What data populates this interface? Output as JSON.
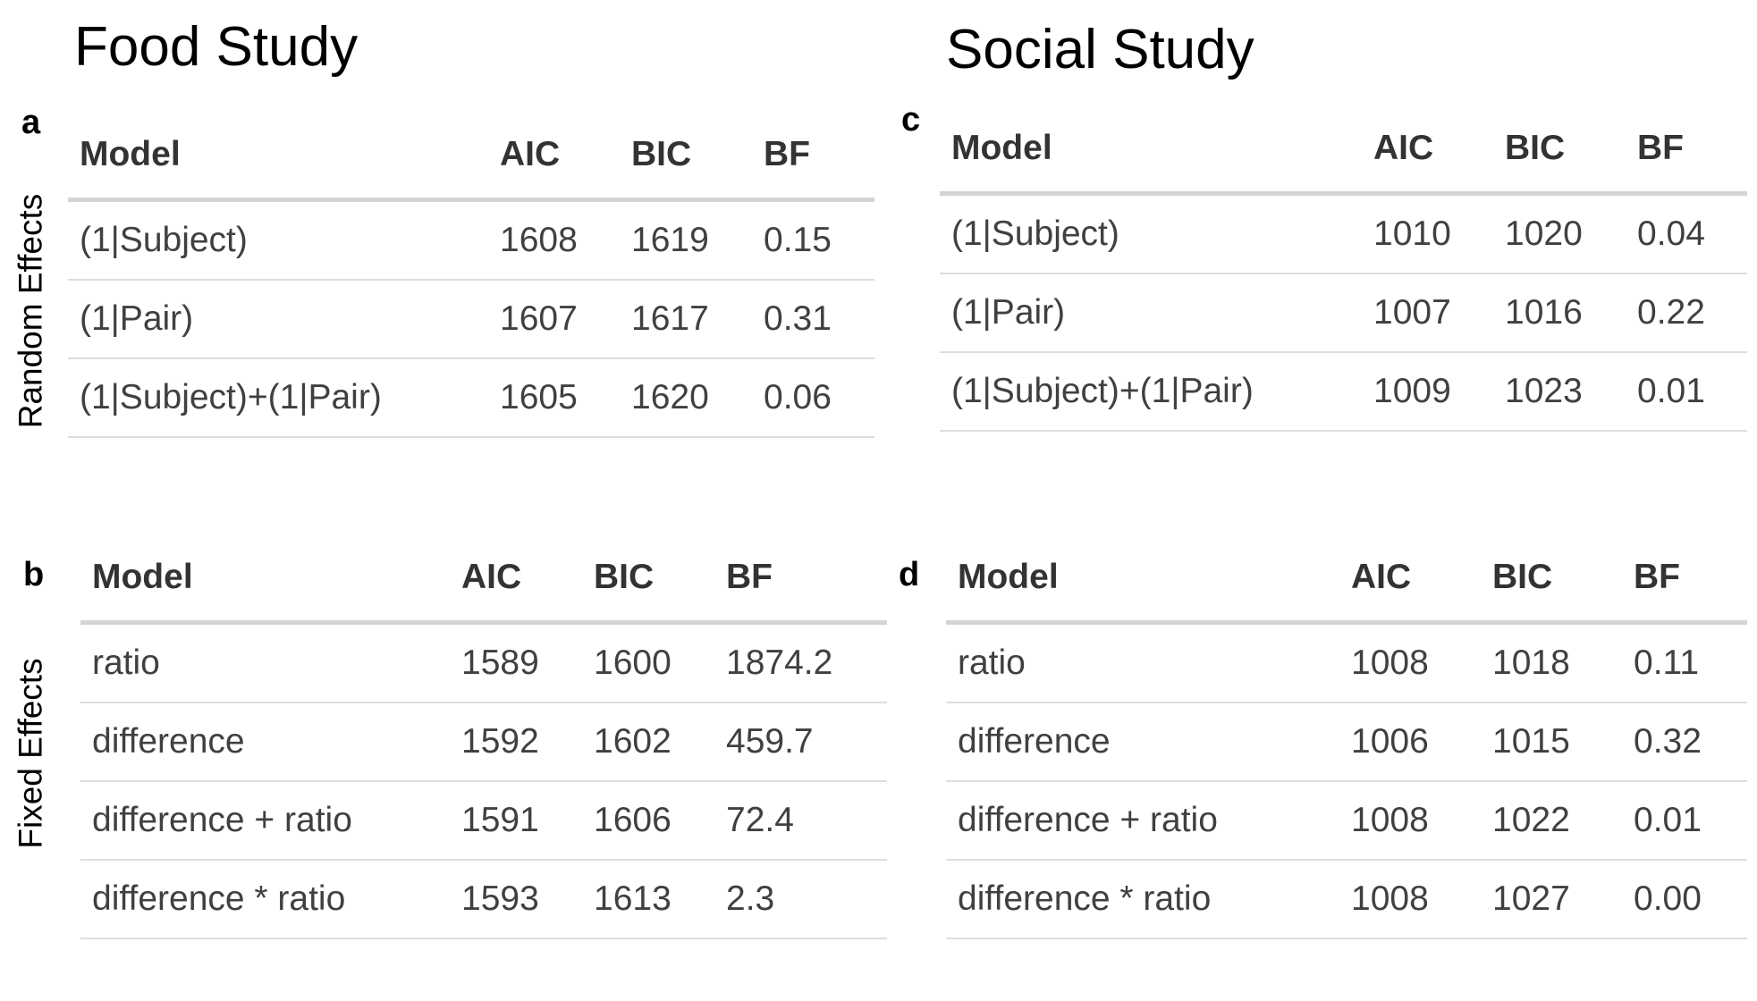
{
  "titles": {
    "food": "Food Study",
    "social": "Social Study"
  },
  "row_labels": {
    "random": "Random Effects",
    "fixed": "Fixed Effects"
  },
  "panels": {
    "a": {
      "letter": "a",
      "headers": [
        "Model",
        "AIC",
        "BIC",
        "BF"
      ],
      "rows": [
        [
          "(1|Subject)",
          "1608",
          "1619",
          "0.15"
        ],
        [
          "(1|Pair)",
          "1607",
          "1617",
          "0.31"
        ],
        [
          "(1|Subject)+(1|Pair)",
          "1605",
          "1620",
          "0.06"
        ]
      ]
    },
    "b": {
      "letter": "b",
      "headers": [
        "Model",
        "AIC",
        "BIC",
        "BF"
      ],
      "rows": [
        [
          "ratio",
          "1589",
          "1600",
          "1874.2"
        ],
        [
          "difference",
          "1592",
          "1602",
          "459.7"
        ],
        [
          "difference + ratio",
          "1591",
          "1606",
          "72.4"
        ],
        [
          "difference * ratio",
          "1593",
          "1613",
          "2.3"
        ]
      ]
    },
    "c": {
      "letter": "c",
      "headers": [
        "Model",
        "AIC",
        "BIC",
        "BF"
      ],
      "rows": [
        [
          "(1|Subject)",
          "1010",
          "1020",
          "0.04"
        ],
        [
          "(1|Pair)",
          "1007",
          "1016",
          "0.22"
        ],
        [
          "(1|Subject)+(1|Pair)",
          "1009",
          "1023",
          "0.01"
        ]
      ]
    },
    "d": {
      "letter": "d",
      "headers": [
        "Model",
        "AIC",
        "BIC",
        "BF"
      ],
      "rows": [
        [
          "ratio",
          "1008",
          "1018",
          "0.11"
        ],
        [
          "difference",
          "1006",
          "1015",
          "0.32"
        ],
        [
          "difference + ratio",
          "1008",
          "1022",
          "0.01"
        ],
        [
          "difference * ratio",
          "1008",
          "1027",
          "0.00"
        ]
      ]
    }
  }
}
